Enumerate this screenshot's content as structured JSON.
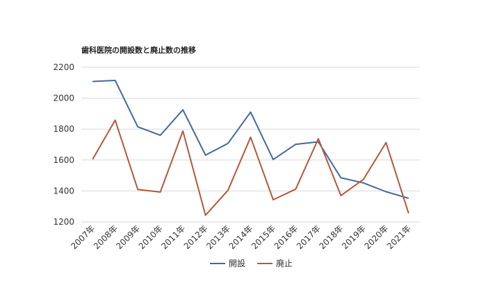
{
  "chart_data": {
    "type": "line",
    "title": "歯科医院の開設数と廃止数の推移",
    "categories": [
      "2007年",
      "2008年",
      "2009年",
      "2010年",
      "2011年",
      "2012年",
      "2013年",
      "2014年",
      "2015年",
      "2016年",
      "2017年",
      "2018年",
      "2019年",
      "2020年",
      "2021年"
    ],
    "series": [
      {
        "name": "開設",
        "color": "#41689e",
        "values": [
          2108,
          2115,
          1815,
          1760,
          1925,
          1632,
          1708,
          1910,
          1603,
          1702,
          1718,
          1485,
          1452,
          1395,
          1353
        ]
      },
      {
        "name": "廃止",
        "color": "#b5573a",
        "values": [
          1605,
          1858,
          1410,
          1393,
          1788,
          1243,
          1405,
          1748,
          1343,
          1412,
          1738,
          1370,
          1475,
          1713,
          1255
        ]
      }
    ],
    "ylim": [
      1200,
      2200
    ],
    "yticks": [
      1200,
      1400,
      1600,
      1800,
      2000,
      2200
    ],
    "grid": true,
    "legend_position": "bottom"
  }
}
